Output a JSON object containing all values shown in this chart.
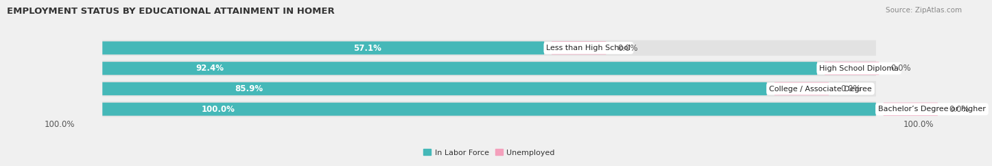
{
  "title": "EMPLOYMENT STATUS BY EDUCATIONAL ATTAINMENT IN HOMER",
  "source": "Source: ZipAtlas.com",
  "categories": [
    "Less than High School",
    "High School Diploma",
    "College / Associate Degree",
    "Bachelor’s Degree or higher"
  ],
  "labor_force": [
    57.1,
    92.4,
    85.9,
    100.0
  ],
  "unemployed": [
    0.0,
    0.0,
    0.0,
    0.0
  ],
  "color_labor": "#45b8b8",
  "color_unemployed": "#f4a0bc",
  "bar_height": 0.62,
  "background_color": "#f0f0f0",
  "bar_bg_color": "#e2e2e2",
  "title_fontsize": 9.5,
  "label_fontsize": 8.5,
  "source_fontsize": 7.5,
  "pct_fontsize": 8.5,
  "cat_fontsize": 8.0,
  "left_axis_label": "100.0%",
  "right_axis_label": "100.0%",
  "legend_items": [
    "In Labor Force",
    "Unemployed"
  ],
  "legend_colors": [
    "#45b8b8",
    "#f4a0bc"
  ],
  "xlim_min": 0,
  "xlim_max": 100,
  "pink_bar_width": 7.0,
  "pink_bar_gap": 1.0
}
